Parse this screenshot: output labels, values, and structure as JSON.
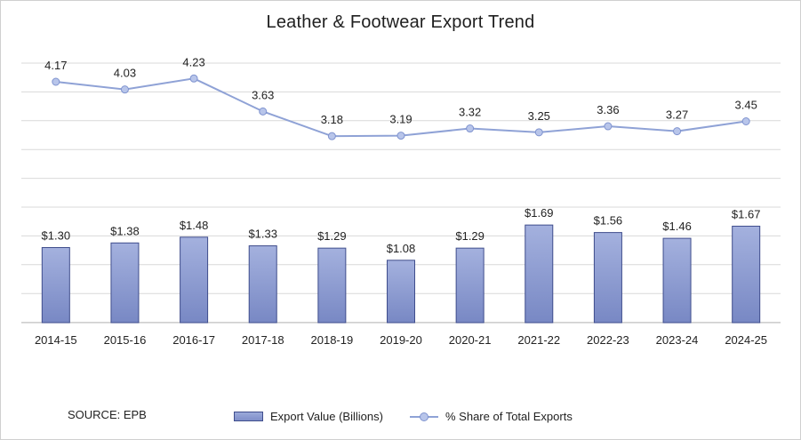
{
  "chart_data": {
    "type": "bar+line",
    "title": "Leather & Footwear Export Trend",
    "categories": [
      "2014-15",
      "2015-16",
      "2016-17",
      "2017-18",
      "2018-19",
      "2019-20",
      "2020-21",
      "2021-22",
      "2022-23",
      "2023-24",
      "2024-25"
    ],
    "series": [
      {
        "name": "Export Value (Billions)",
        "kind": "bar",
        "values": [
          1.3,
          1.38,
          1.48,
          1.33,
          1.29,
          1.08,
          1.29,
          1.69,
          1.56,
          1.46,
          1.67
        ],
        "labels": [
          "$1.30",
          "$1.38",
          "$1.48",
          "$1.33",
          "$1.29",
          "$1.08",
          "$1.29",
          "$1.69",
          "$1.56",
          "$1.46",
          "$1.67"
        ],
        "color": "#8e9dd3"
      },
      {
        "name": "% Share of Total Exports",
        "kind": "line",
        "values": [
          4.17,
          4.03,
          4.23,
          3.63,
          3.18,
          3.19,
          3.32,
          3.25,
          3.36,
          3.27,
          3.45
        ],
        "labels": [
          "4.17",
          "4.03",
          "4.23",
          "3.63",
          "3.18",
          "3.19",
          "3.32",
          "3.25",
          "3.36",
          "3.27",
          "3.45"
        ],
        "color": "#8fa2d6"
      }
    ],
    "grid": true,
    "legend_position": "bottom"
  },
  "source_text": "SOURCE: EPB",
  "colors": {
    "bar_top": "#9eacdb",
    "bar_bottom": "#7b8bc6",
    "bar_edge": "#3f4d8c",
    "line": "#8fa2d6",
    "marker": "#b8c5ea",
    "grid": "#d9d9d9"
  }
}
